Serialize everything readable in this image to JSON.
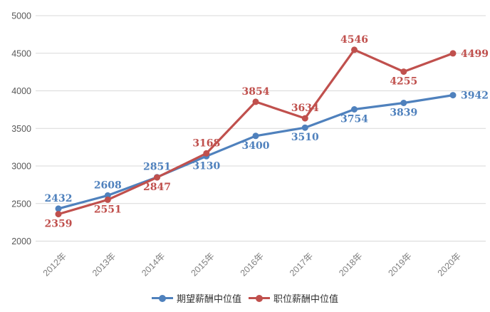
{
  "chart_data": {
    "type": "line",
    "title": "",
    "categories": [
      "2012年",
      "2013年",
      "2014年",
      "2015年",
      "2016年",
      "2017年",
      "2018年",
      "2019年",
      "2020年"
    ],
    "series": [
      {
        "name": "期望薪酬中位值",
        "color": "#4F81BD",
        "values": [
          2432,
          2608,
          2851,
          3130,
          3400,
          3510,
          3754,
          3839,
          3942
        ],
        "label_positions": [
          "above",
          "above",
          "above",
          "below",
          "below",
          "below",
          "below",
          "below",
          "right"
        ]
      },
      {
        "name": "职位薪酬中位值",
        "color": "#C0504D",
        "values": [
          2359,
          2551,
          2847,
          3168,
          3854,
          3634,
          4546,
          4255,
          4499
        ],
        "label_positions": [
          "below",
          "below",
          "below",
          "above",
          "above",
          "above",
          "above",
          "below",
          "right"
        ]
      }
    ],
    "ylim": [
      2000,
      5000
    ],
    "ytick_step": 500,
    "yticks": [
      "2000",
      "2500",
      "3000",
      "3500",
      "4000",
      "4500",
      "5000"
    ],
    "grid": true,
    "legend_position": "bottom",
    "x_label_rotation": -45
  },
  "colors": {
    "gridline": "#D9D9D9",
    "axis_text": "#595959",
    "x_axis_text": "#808080",
    "background": "#FFFFFF"
  }
}
